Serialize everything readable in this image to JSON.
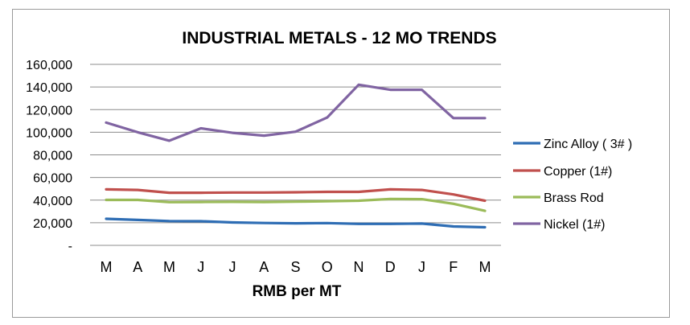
{
  "chart_data": {
    "type": "line",
    "title": "INDUSTRIAL METALS - 12 MO TRENDS",
    "xlabel": "RMB per MT",
    "ylabel": "",
    "categories": [
      "M",
      "A",
      "M",
      "J",
      "J",
      "A",
      "S",
      "O",
      "N",
      "D",
      "J",
      "F",
      "M"
    ],
    "ylim": [
      0,
      160000
    ],
    "yticks": [
      0,
      20000,
      40000,
      60000,
      80000,
      100000,
      120000,
      140000,
      160000
    ],
    "ytick_labels": [
      "-",
      "20,000",
      "40,000",
      "60,000",
      "80,000",
      "100,000",
      "120,000",
      "140,000",
      "160,000"
    ],
    "grid": true,
    "legend_position": "right",
    "series": [
      {
        "name": "Zinc Alloy ( 3# )",
        "color": "#2e6db4",
        "values": [
          23500,
          22500,
          21500,
          21300,
          20300,
          19800,
          19500,
          19700,
          19000,
          19000,
          19300,
          16700,
          16000
        ]
      },
      {
        "name": "Copper (1#)",
        "color": "#c0504d",
        "values": [
          49500,
          49000,
          46500,
          46500,
          46700,
          46700,
          46900,
          47300,
          47300,
          49500,
          49000,
          45000,
          39500
        ]
      },
      {
        "name": "Brass Rod",
        "color": "#9bbb59",
        "values": [
          40200,
          40200,
          38200,
          38300,
          38500,
          38300,
          38600,
          39000,
          39500,
          41000,
          40800,
          36800,
          30500
        ]
      },
      {
        "name": "Nickel (1#)",
        "color": "#8064a2",
        "values": [
          108500,
          100000,
          92500,
          103500,
          99500,
          97000,
          100500,
          113000,
          142000,
          137500,
          137500,
          112500,
          112500
        ]
      }
    ]
  }
}
